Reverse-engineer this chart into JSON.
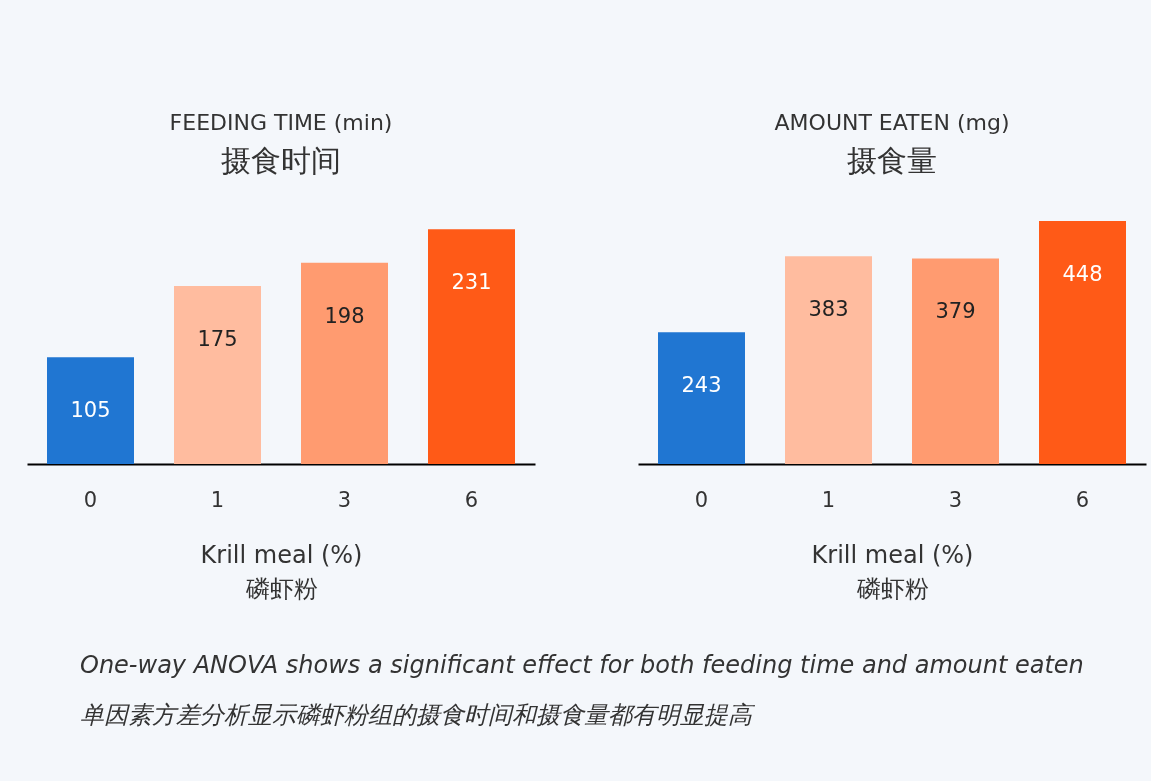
{
  "chart_data": [
    {
      "type": "bar",
      "title": "FEEDING TIME (min)",
      "subtitle": "摄食时间",
      "xlabel": "Krill meal (%)\n磷虾粉",
      "categories": [
        "0",
        "1",
        "3",
        "6"
      ],
      "values": [
        105,
        175,
        198,
        231
      ],
      "colors": [
        "#2076d2",
        "#ffbc9f",
        "#ff9b70",
        "#ff5a17"
      ],
      "data_labels": true
    },
    {
      "type": "bar",
      "title": "AMOUNT EATEN (mg)",
      "subtitle": "摄食量",
      "xlabel": "Krill meal (%)\n磷虾粉",
      "categories": [
        "0",
        "1",
        "3",
        "6"
      ],
      "values": [
        243,
        383,
        379,
        448
      ],
      "colors": [
        "#2076d2",
        "#ffbc9f",
        "#ff9b70",
        "#ff5a17"
      ],
      "data_labels": true,
      "annotations": [
        "One-way ANOVA shows a significant effect for both feeding time and amount eaten",
        "单因素方差分析显示磷虾粉组的摄食时间和摄食量都有明显提高"
      ]
    }
  ]
}
